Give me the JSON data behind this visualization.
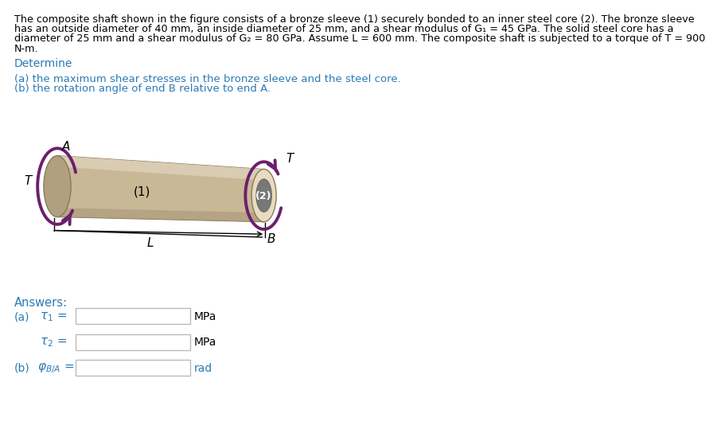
{
  "bg_color": "#ffffff",
  "text_color_black": "#000000",
  "text_color_blue": "#2a7ab5",
  "arrow_color": "#6b1f6b",
  "shaft_body_color": "#c8b896",
  "shaft_top_color": "#ddd0b8",
  "shaft_shadow_color": "#a89878",
  "shaft_edge_color": "#8a7858",
  "end_face_ring_color": "#e8dcc0",
  "end_face_inner_color": "#787878",
  "end_face_edge_color": "#6a6a6a",
  "left_face_color": "#b0a080",
  "determine_text": "Determine",
  "part_a_text": "(a) the maximum shear stresses in the bronze sleeve and the steel core.",
  "part_b_text": "(b) the rotation angle of end B relative to end A.",
  "answers_text": "Answers:",
  "unit_MPa": "MPa",
  "unit_rad": "rad",
  "box_color": "#bbbbbb",
  "box_facecolor": "#ffffff",
  "problem_lines": [
    "The composite shaft shown in the figure consists of a bronze sleeve (1) securely bonded to an inner steel core (2). The bronze sleeve",
    "has an outside diameter of 40 mm, an inside diameter of 25 mm, and a shear modulus of G₁ = 45 GPa. The solid steel core has a",
    "diameter of 25 mm and a shear modulus of G₂ = 80 GPa. Assume L = 600 mm. The composite shaft is subjected to a torque of T = 900",
    "N-m."
  ]
}
